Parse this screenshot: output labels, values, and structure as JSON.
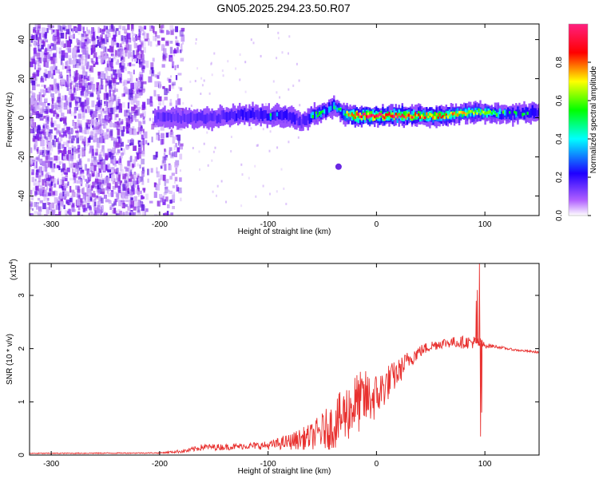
{
  "page": {
    "title": "GN05.2025.294.23.50.R07"
  },
  "colors": {
    "axis": "#000000",
    "snr_line": "#e8312f",
    "spectro_noise": "#7a1bf0"
  },
  "chart_data": [
    {
      "type": "heatmap",
      "name": "spectrogram",
      "xlabel": "Height of straight line (km)",
      "ylabel": "Frequency (Hz)",
      "xlim": [
        -320,
        150
      ],
      "ylim": [
        -50,
        48
      ],
      "xticks": [
        -300,
        -200,
        -100,
        0,
        100
      ],
      "xtick_labels": [
        "-300",
        "-200",
        "-100",
        "0",
        "100"
      ],
      "yticks": [
        -40,
        -20,
        0,
        20,
        40
      ],
      "ytick_labels": [
        "-40",
        "-20",
        "0",
        "20",
        "40"
      ],
      "noise_region_x": [
        -320,
        -195
      ],
      "signal_band": {
        "x": [
          -205,
          -150,
          -120,
          -100,
          -80,
          -70,
          -60,
          -50,
          -40,
          -30,
          -20,
          0,
          30,
          60,
          90,
          120,
          150
        ],
        "center_hz": [
          0,
          0,
          2,
          1,
          1,
          -2,
          1,
          3,
          6,
          2,
          1,
          1,
          1,
          1,
          3,
          2,
          3
        ],
        "peak_amplitude": [
          0.35,
          0.35,
          0.45,
          0.45,
          0.45,
          0.35,
          0.5,
          0.5,
          0.45,
          0.55,
          0.95,
          0.95,
          0.85,
          0.75,
          0.65,
          0.5,
          0.45
        ]
      },
      "isolated_blob": {
        "x": -35,
        "hz": -25
      },
      "colorbar": {
        "label": "Normalized spectral amplitude",
        "range": [
          0,
          1
        ],
        "ticks": [
          0.0,
          0.2,
          0.4,
          0.6,
          0.8
        ],
        "tick_labels": [
          "0.0",
          "0.2",
          "0.4",
          "0.6",
          "0.8"
        ],
        "colors": [
          "#ffffff",
          "#b060ff",
          "#1f00ff",
          "#00ffff",
          "#00ff00",
          "#ffff00",
          "#ff0000",
          "#ff2080"
        ]
      }
    },
    {
      "type": "line",
      "name": "snr",
      "xlabel": "Height of straight line (km)",
      "ylabel": "SNR (10 * v/v)",
      "scale_label": "(x10",
      "scale_exp": "4",
      "scale_close": ")",
      "xlim": [
        -320,
        150
      ],
      "ylim": [
        0,
        3.6
      ],
      "xticks": [
        -300,
        -200,
        -100,
        0,
        100
      ],
      "xtick_labels": [
        "-300",
        "-200",
        "-100",
        "0",
        "100"
      ],
      "yticks": [
        0,
        1,
        2,
        3
      ],
      "ytick_labels": [
        "0",
        "1",
        "2",
        "3"
      ],
      "x": [
        -320,
        -200,
        -175,
        -160,
        -140,
        -120,
        -100,
        -80,
        -60,
        -50,
        -40,
        -30,
        -20,
        -10,
        0,
        10,
        20,
        30,
        40,
        50,
        60,
        70,
        80,
        90,
        95,
        100,
        110,
        120,
        130,
        150
      ],
      "y": [
        0.03,
        0.04,
        0.08,
        0.15,
        0.15,
        0.17,
        0.18,
        0.25,
        0.35,
        0.45,
        0.55,
        0.75,
        0.95,
        1.05,
        1.1,
        1.35,
        1.55,
        1.8,
        1.95,
        2.05,
        2.1,
        2.12,
        2.12,
        2.12,
        2.1,
        2.06,
        2.04,
        2.0,
        1.97,
        1.93
      ],
      "noise_amp": [
        0.01,
        0.01,
        0.04,
        0.06,
        0.06,
        0.06,
        0.08,
        0.15,
        0.25,
        0.35,
        0.45,
        0.55,
        0.6,
        0.55,
        0.45,
        0.35,
        0.25,
        0.18,
        0.12,
        0.1,
        0.1,
        0.1,
        0.12,
        0.12,
        0.12,
        0.05,
        0.03,
        0.02,
        0.02,
        0.02
      ],
      "spikes": [
        {
          "x": 95,
          "y": 3.6
        },
        {
          "x": 96,
          "y": 0.35
        },
        {
          "x": 93,
          "y": 3.1
        },
        {
          "x": 97,
          "y": 0.8
        },
        {
          "x": 92,
          "y": 2.9
        }
      ]
    }
  ]
}
